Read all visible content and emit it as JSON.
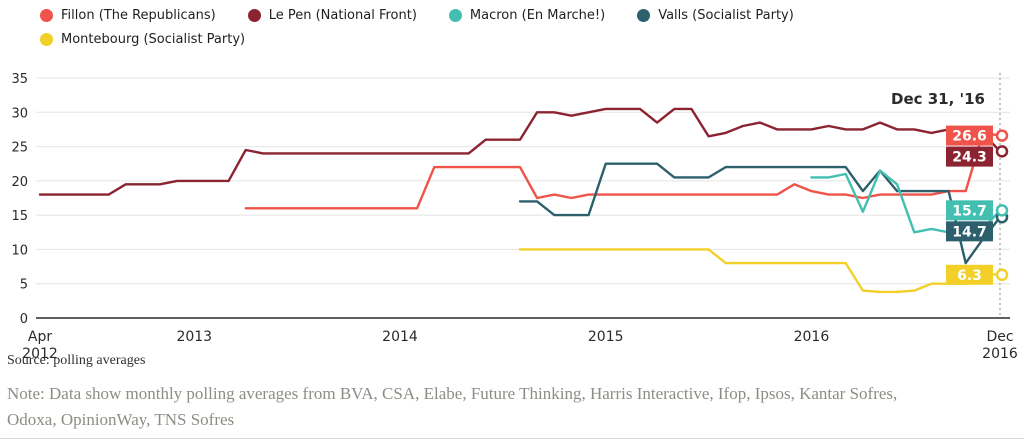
{
  "legend": {
    "rows": [
      [
        {
          "label": "Fillon (The Republicans)",
          "color": "#ef5349"
        },
        {
          "label": "Le Pen (National Front)",
          "color": "#8b2331"
        },
        {
          "label": "Macron (En Marche!)",
          "color": "#42bfb0"
        },
        {
          "label": "Valls (Socialist Party)",
          "color": "#2d5f6d"
        }
      ],
      [
        {
          "label": "Montebourg (Socialist Party)",
          "color": "#f2d028"
        }
      ]
    ]
  },
  "chart_data": {
    "type": "line",
    "x_unit": "monthly, Apr 2012 through Dec 2016",
    "n_points": 57,
    "ylim": [
      0,
      35
    ],
    "y_ticks": [
      35,
      30,
      25,
      20,
      15,
      10,
      5,
      0
    ],
    "grid": true,
    "legend_position": "top",
    "annotation": {
      "label": "Dec 31, '16"
    },
    "x_ticks": [
      {
        "lines": [
          "Apr",
          "2012"
        ],
        "month_index": 0
      },
      {
        "lines": [
          "2013"
        ],
        "month_index": 9
      },
      {
        "lines": [
          "2014"
        ],
        "month_index": 21
      },
      {
        "lines": [
          "2015"
        ],
        "month_index": 33
      },
      {
        "lines": [
          "2016"
        ],
        "month_index": 45
      },
      {
        "lines": [
          "Dec",
          "2016"
        ],
        "month_index": 56
      }
    ],
    "series": [
      {
        "name": "Le Pen (National Front)",
        "color": "#8b2331",
        "end_label": "24.3",
        "values": [
          18,
          18,
          18,
          18,
          18,
          19.5,
          19.5,
          19.5,
          20,
          20,
          20,
          20,
          24.5,
          24,
          24,
          24,
          24,
          24,
          24,
          24,
          24,
          24,
          24,
          24,
          24,
          24,
          26,
          26,
          26,
          30,
          30,
          29.5,
          30,
          30.5,
          30.5,
          30.5,
          28.5,
          30.5,
          30.5,
          26.5,
          27,
          28,
          28.5,
          27.5,
          27.5,
          27.5,
          28,
          27.5,
          27.5,
          28.5,
          27.5,
          27.5,
          27,
          27.5,
          27.5,
          27,
          24.3
        ]
      },
      {
        "name": "Fillon (The Republicans)",
        "color": "#ef5349",
        "end_label": "26.6",
        "values": [
          null,
          null,
          null,
          null,
          null,
          null,
          null,
          null,
          null,
          null,
          null,
          null,
          16,
          16,
          16,
          16,
          16,
          16,
          16,
          16,
          16,
          16,
          16,
          22,
          22,
          22,
          22,
          22,
          22,
          17.5,
          18,
          17.5,
          18,
          18,
          18,
          18,
          18,
          18,
          18,
          18,
          18,
          18,
          18,
          18,
          19.5,
          18.5,
          18,
          18,
          17.5,
          18,
          18,
          18,
          18,
          18.5,
          18.5,
          27,
          26.6
        ]
      },
      {
        "name": "Valls (Socialist Party)",
        "color": "#2d5f6d",
        "end_label": "14.7",
        "values": [
          null,
          null,
          null,
          null,
          null,
          null,
          null,
          null,
          null,
          null,
          null,
          null,
          null,
          null,
          null,
          null,
          null,
          null,
          null,
          null,
          null,
          null,
          null,
          null,
          null,
          null,
          null,
          null,
          17,
          17,
          15,
          15,
          15,
          22.5,
          22.5,
          22.5,
          22.5,
          20.5,
          20.5,
          20.5,
          22,
          22,
          22,
          22,
          22,
          22,
          22,
          22,
          18.5,
          21.5,
          18.5,
          18.5,
          18.5,
          18.5,
          8,
          11.5,
          14.7
        ]
      },
      {
        "name": "Montebourg (Socialist Party)",
        "color": "#f2d028",
        "end_label": "6.3",
        "values": [
          null,
          null,
          null,
          null,
          null,
          null,
          null,
          null,
          null,
          null,
          null,
          null,
          null,
          null,
          null,
          null,
          null,
          null,
          null,
          null,
          null,
          null,
          null,
          null,
          null,
          null,
          null,
          null,
          10,
          10,
          10,
          10,
          10,
          10,
          10,
          10,
          10,
          10,
          10,
          10,
          8,
          8,
          8,
          8,
          8,
          8,
          8,
          8,
          4,
          3.8,
          3.8,
          4,
          5,
          5,
          5,
          6.5,
          6.3
        ]
      },
      {
        "name": "Macron (En Marche!)",
        "color": "#42bfb0",
        "end_label": "15.7",
        "values": [
          null,
          null,
          null,
          null,
          null,
          null,
          null,
          null,
          null,
          null,
          null,
          null,
          null,
          null,
          null,
          null,
          null,
          null,
          null,
          null,
          null,
          null,
          null,
          null,
          null,
          null,
          null,
          null,
          null,
          null,
          null,
          null,
          null,
          null,
          null,
          null,
          null,
          null,
          null,
          null,
          null,
          null,
          null,
          null,
          null,
          20.5,
          20.5,
          21,
          15.5,
          21.5,
          19.5,
          12.5,
          13,
          12.5,
          13,
          13,
          15.7
        ]
      }
    ]
  },
  "source": "Source: polling averages",
  "note": "Note: Data show monthly polling averages from BVA, CSA, Elabe, Future Thinking, Harris Interactive, Ifop, Ipsos, Kantar Sofres, Odoxa, OpinionWay, TNS Sofres"
}
